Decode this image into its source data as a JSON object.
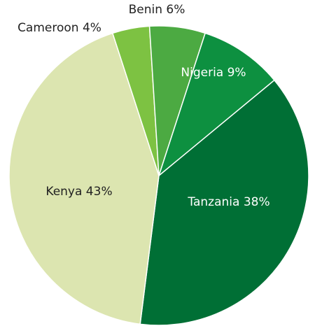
{
  "chart_data": {
    "type": "pie",
    "slices": [
      {
        "label": "Tanzania 38%",
        "category": "Tanzania",
        "value": 38,
        "color": "#006f35",
        "label_color": "#ffffff"
      },
      {
        "label": "Kenya 43%",
        "category": "Kenya",
        "value": 43,
        "color": "#dce5b0",
        "label_color": "#222222"
      },
      {
        "label": "Cameroon 4%",
        "category": "Cameroon",
        "value": 4,
        "color": "#7dc242",
        "label_color": "#222222"
      },
      {
        "label": "Benin 6%",
        "category": "Benin",
        "value": 6,
        "color": "#4caa42",
        "label_color": "#222222"
      },
      {
        "label": "Nigeria 9%",
        "category": "Nigeria",
        "value": 9,
        "color": "#0d9040",
        "label_color": "#ffffff"
      }
    ],
    "legend": "none",
    "slice_border_color": "#ffffff"
  }
}
